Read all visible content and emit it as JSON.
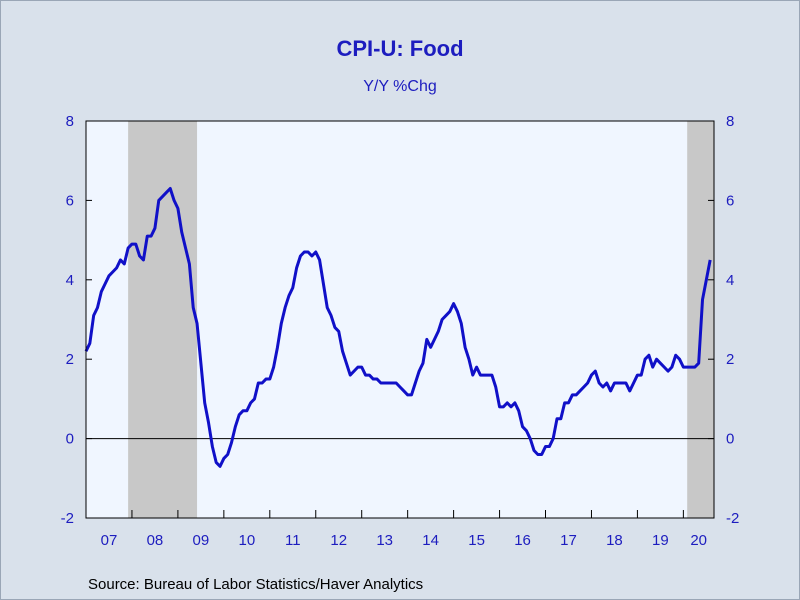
{
  "title": "CPI-U: Food",
  "subtitle": "Y/Y %Chg",
  "source": "Source:  Bureau of Labor Statistics/Haver Analytics",
  "colors": {
    "background": "#d9e1eb",
    "plot_background": "#f0f6ff",
    "line": "#1010c8",
    "recession": "#c8c8c8",
    "text": "#1d1dbf"
  },
  "chart_data": {
    "type": "line",
    "title": "CPI-U: Food",
    "subtitle": "Y/Y %Chg",
    "xlabel": "",
    "ylabel": "",
    "ylim": [
      -2,
      8
    ],
    "xlim": [
      "2007-01",
      "2020-09"
    ],
    "yticks": [
      "-2",
      "0",
      "2",
      "4",
      "6",
      "8"
    ],
    "xtick_labels": [
      "07",
      "08",
      "09",
      "10",
      "11",
      "12",
      "13",
      "14",
      "15",
      "16",
      "17",
      "18",
      "19",
      "20"
    ],
    "zero_line": true,
    "grid": false,
    "recession_bands": [
      {
        "start": "2007-12",
        "end": "2009-06"
      },
      {
        "start": "2020-02",
        "end": "2020-09"
      }
    ],
    "series": [
      {
        "values": [
          {
            "x": "2007-01",
            "y": 2.2
          },
          {
            "x": "2007-02",
            "y": 2.4
          },
          {
            "x": "2007-03",
            "y": 3.1
          },
          {
            "x": "2007-04",
            "y": 3.3
          },
          {
            "x": "2007-05",
            "y": 3.7
          },
          {
            "x": "2007-06",
            "y": 3.9
          },
          {
            "x": "2007-07",
            "y": 4.1
          },
          {
            "x": "2007-08",
            "y": 4.2
          },
          {
            "x": "2007-09",
            "y": 4.3
          },
          {
            "x": "2007-10",
            "y": 4.5
          },
          {
            "x": "2007-11",
            "y": 4.4
          },
          {
            "x": "2007-12",
            "y": 4.8
          },
          {
            "x": "2008-01",
            "y": 4.9
          },
          {
            "x": "2008-02",
            "y": 4.9
          },
          {
            "x": "2008-03",
            "y": 4.6
          },
          {
            "x": "2008-04",
            "y": 4.5
          },
          {
            "x": "2008-05",
            "y": 5.1
          },
          {
            "x": "2008-06",
            "y": 5.1
          },
          {
            "x": "2008-07",
            "y": 5.3
          },
          {
            "x": "2008-08",
            "y": 6.0
          },
          {
            "x": "2008-09",
            "y": 6.1
          },
          {
            "x": "2008-10",
            "y": 6.2
          },
          {
            "x": "2008-11",
            "y": 6.3
          },
          {
            "x": "2008-12",
            "y": 6.0
          },
          {
            "x": "2009-01",
            "y": 5.8
          },
          {
            "x": "2009-02",
            "y": 5.2
          },
          {
            "x": "2009-03",
            "y": 4.8
          },
          {
            "x": "2009-04",
            "y": 4.4
          },
          {
            "x": "2009-05",
            "y": 3.3
          },
          {
            "x": "2009-06",
            "y": 2.9
          },
          {
            "x": "2009-07",
            "y": 1.9
          },
          {
            "x": "2009-08",
            "y": 0.9
          },
          {
            "x": "2009-09",
            "y": 0.4
          },
          {
            "x": "2009-10",
            "y": -0.2
          },
          {
            "x": "2009-11",
            "y": -0.6
          },
          {
            "x": "2009-12",
            "y": -0.7
          },
          {
            "x": "2010-01",
            "y": -0.5
          },
          {
            "x": "2010-02",
            "y": -0.4
          },
          {
            "x": "2010-03",
            "y": -0.1
          },
          {
            "x": "2010-04",
            "y": 0.3
          },
          {
            "x": "2010-05",
            "y": 0.6
          },
          {
            "x": "2010-06",
            "y": 0.7
          },
          {
            "x": "2010-07",
            "y": 0.7
          },
          {
            "x": "2010-08",
            "y": 0.9
          },
          {
            "x": "2010-09",
            "y": 1.0
          },
          {
            "x": "2010-10",
            "y": 1.4
          },
          {
            "x": "2010-11",
            "y": 1.4
          },
          {
            "x": "2010-12",
            "y": 1.5
          },
          {
            "x": "2011-01",
            "y": 1.5
          },
          {
            "x": "2011-02",
            "y": 1.8
          },
          {
            "x": "2011-03",
            "y": 2.3
          },
          {
            "x": "2011-04",
            "y": 2.9
          },
          {
            "x": "2011-05",
            "y": 3.3
          },
          {
            "x": "2011-06",
            "y": 3.6
          },
          {
            "x": "2011-07",
            "y": 3.8
          },
          {
            "x": "2011-08",
            "y": 4.3
          },
          {
            "x": "2011-09",
            "y": 4.6
          },
          {
            "x": "2011-10",
            "y": 4.7
          },
          {
            "x": "2011-11",
            "y": 4.7
          },
          {
            "x": "2011-12",
            "y": 4.6
          },
          {
            "x": "2012-01",
            "y": 4.7
          },
          {
            "x": "2012-02",
            "y": 4.5
          },
          {
            "x": "2012-03",
            "y": 3.9
          },
          {
            "x": "2012-04",
            "y": 3.3
          },
          {
            "x": "2012-05",
            "y": 3.1
          },
          {
            "x": "2012-06",
            "y": 2.8
          },
          {
            "x": "2012-07",
            "y": 2.7
          },
          {
            "x": "2012-08",
            "y": 2.2
          },
          {
            "x": "2012-09",
            "y": 1.9
          },
          {
            "x": "2012-10",
            "y": 1.6
          },
          {
            "x": "2012-11",
            "y": 1.7
          },
          {
            "x": "2012-12",
            "y": 1.8
          },
          {
            "x": "2013-01",
            "y": 1.8
          },
          {
            "x": "2013-02",
            "y": 1.6
          },
          {
            "x": "2013-03",
            "y": 1.6
          },
          {
            "x": "2013-04",
            "y": 1.5
          },
          {
            "x": "2013-05",
            "y": 1.5
          },
          {
            "x": "2013-06",
            "y": 1.4
          },
          {
            "x": "2013-07",
            "y": 1.4
          },
          {
            "x": "2013-08",
            "y": 1.4
          },
          {
            "x": "2013-09",
            "y": 1.4
          },
          {
            "x": "2013-10",
            "y": 1.4
          },
          {
            "x": "2013-11",
            "y": 1.3
          },
          {
            "x": "2013-12",
            "y": 1.2
          },
          {
            "x": "2014-01",
            "y": 1.1
          },
          {
            "x": "2014-02",
            "y": 1.1
          },
          {
            "x": "2014-03",
            "y": 1.4
          },
          {
            "x": "2014-04",
            "y": 1.7
          },
          {
            "x": "2014-05",
            "y": 1.9
          },
          {
            "x": "2014-06",
            "y": 2.5
          },
          {
            "x": "2014-07",
            "y": 2.3
          },
          {
            "x": "2014-08",
            "y": 2.5
          },
          {
            "x": "2014-09",
            "y": 2.7
          },
          {
            "x": "2014-10",
            "y": 3.0
          },
          {
            "x": "2014-11",
            "y": 3.1
          },
          {
            "x": "2014-12",
            "y": 3.2
          },
          {
            "x": "2015-01",
            "y": 3.4
          },
          {
            "x": "2015-02",
            "y": 3.2
          },
          {
            "x": "2015-03",
            "y": 2.9
          },
          {
            "x": "2015-04",
            "y": 2.3
          },
          {
            "x": "2015-05",
            "y": 2.0
          },
          {
            "x": "2015-06",
            "y": 1.6
          },
          {
            "x": "2015-07",
            "y": 1.8
          },
          {
            "x": "2015-08",
            "y": 1.6
          },
          {
            "x": "2015-09",
            "y": 1.6
          },
          {
            "x": "2015-10",
            "y": 1.6
          },
          {
            "x": "2015-11",
            "y": 1.6
          },
          {
            "x": "2015-12",
            "y": 1.3
          },
          {
            "x": "2016-01",
            "y": 0.8
          },
          {
            "x": "2016-02",
            "y": 0.8
          },
          {
            "x": "2016-03",
            "y": 0.9
          },
          {
            "x": "2016-04",
            "y": 0.8
          },
          {
            "x": "2016-05",
            "y": 0.9
          },
          {
            "x": "2016-06",
            "y": 0.7
          },
          {
            "x": "2016-07",
            "y": 0.3
          },
          {
            "x": "2016-08",
            "y": 0.2
          },
          {
            "x": "2016-09",
            "y": 0.0
          },
          {
            "x": "2016-10",
            "y": -0.3
          },
          {
            "x": "2016-11",
            "y": -0.4
          },
          {
            "x": "2016-12",
            "y": -0.4
          },
          {
            "x": "2017-01",
            "y": -0.2
          },
          {
            "x": "2017-02",
            "y": -0.2
          },
          {
            "x": "2017-03",
            "y": 0.0
          },
          {
            "x": "2017-04",
            "y": 0.5
          },
          {
            "x": "2017-05",
            "y": 0.5
          },
          {
            "x": "2017-06",
            "y": 0.9
          },
          {
            "x": "2017-07",
            "y": 0.9
          },
          {
            "x": "2017-08",
            "y": 1.1
          },
          {
            "x": "2017-09",
            "y": 1.1
          },
          {
            "x": "2017-10",
            "y": 1.2
          },
          {
            "x": "2017-11",
            "y": 1.3
          },
          {
            "x": "2017-12",
            "y": 1.4
          },
          {
            "x": "2018-01",
            "y": 1.6
          },
          {
            "x": "2018-02",
            "y": 1.7
          },
          {
            "x": "2018-03",
            "y": 1.4
          },
          {
            "x": "2018-04",
            "y": 1.3
          },
          {
            "x": "2018-05",
            "y": 1.4
          },
          {
            "x": "2018-06",
            "y": 1.2
          },
          {
            "x": "2018-07",
            "y": 1.4
          },
          {
            "x": "2018-08",
            "y": 1.4
          },
          {
            "x": "2018-09",
            "y": 1.4
          },
          {
            "x": "2018-10",
            "y": 1.4
          },
          {
            "x": "2018-11",
            "y": 1.2
          },
          {
            "x": "2018-12",
            "y": 1.4
          },
          {
            "x": "2019-01",
            "y": 1.6
          },
          {
            "x": "2019-02",
            "y": 1.6
          },
          {
            "x": "2019-03",
            "y": 2.0
          },
          {
            "x": "2019-04",
            "y": 2.1
          },
          {
            "x": "2019-05",
            "y": 1.8
          },
          {
            "x": "2019-06",
            "y": 2.0
          },
          {
            "x": "2019-07",
            "y": 1.9
          },
          {
            "x": "2019-08",
            "y": 1.8
          },
          {
            "x": "2019-09",
            "y": 1.7
          },
          {
            "x": "2019-10",
            "y": 1.8
          },
          {
            "x": "2019-11",
            "y": 2.1
          },
          {
            "x": "2019-12",
            "y": 2.0
          },
          {
            "x": "2020-01",
            "y": 1.8
          },
          {
            "x": "2020-02",
            "y": 1.8
          },
          {
            "x": "2020-03",
            "y": 1.8
          },
          {
            "x": "2020-04",
            "y": 1.8
          },
          {
            "x": "2020-05",
            "y": 1.9
          },
          {
            "x": "2020-06",
            "y": 3.5
          },
          {
            "x": "2020-07",
            "y": 4.0
          },
          {
            "x": "2020-08",
            "y": 4.5
          }
        ]
      }
    ]
  }
}
